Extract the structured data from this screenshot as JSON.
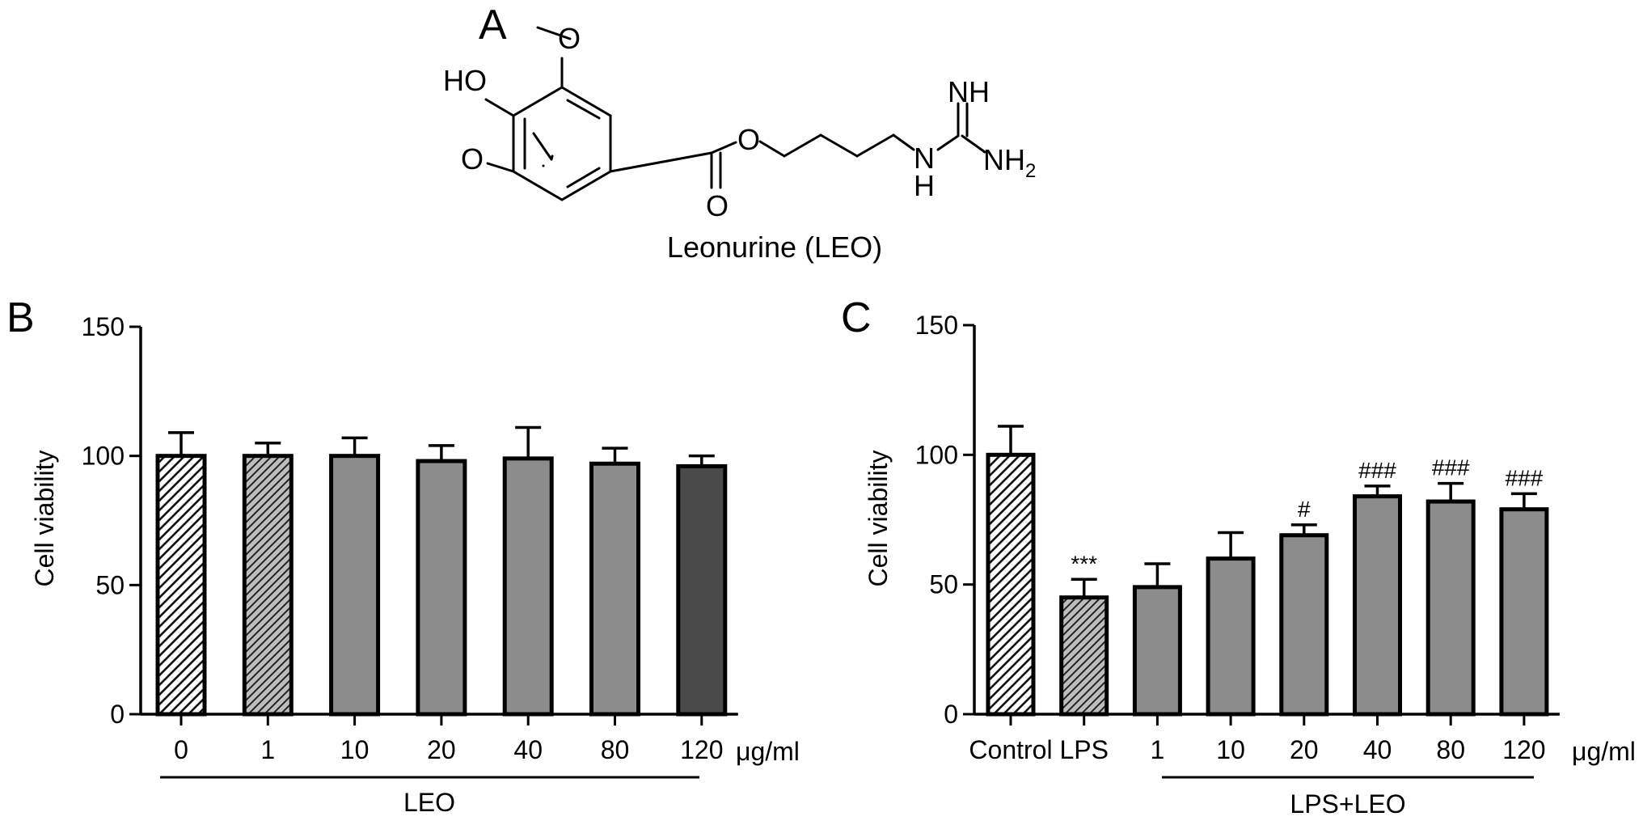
{
  "panel_a": {
    "letter": "A",
    "compound_name": "Leonurine (LEO)",
    "atom_labels": {
      "hydroxyl": "HO",
      "methoxy_top_o": "O",
      "methoxy_bottom_o": "O",
      "ester_o": "O",
      "carbonyl_o": "O",
      "imine": "NH",
      "amine_n": "N",
      "amine_h": "H",
      "amino_main": "NH",
      "amino_sub": "2"
    }
  },
  "chart_data": [
    {
      "panel": "B",
      "type": "bar",
      "ylabel": "Cell viability",
      "ylim": [
        0,
        150
      ],
      "yticks": [
        0,
        50,
        100,
        150
      ],
      "categories": [
        "0",
        "1",
        "10",
        "20",
        "40",
        "80",
        "120"
      ],
      "unit_label": "μg/ml",
      "group_label": "LEO",
      "values": [
        100,
        100,
        100,
        98,
        99,
        97,
        96
      ],
      "errors": [
        9,
        5,
        7,
        6,
        12,
        6,
        4
      ],
      "annotations": [
        "",
        "",
        "",
        "",
        "",
        "",
        ""
      ],
      "fills": [
        "hatch-white",
        "hatch-gray",
        "#8c8c8c",
        "#8c8c8c",
        "#8c8c8c",
        "#8c8c8c",
        "#4a4a4a"
      ]
    },
    {
      "panel": "C",
      "type": "bar",
      "ylabel": "Cell viability",
      "ylim": [
        0,
        150
      ],
      "yticks": [
        0,
        50,
        100,
        150
      ],
      "categories": [
        "Control",
        "LPS",
        "1",
        "10",
        "20",
        "40",
        "80",
        "120"
      ],
      "unit_label": "μg/ml",
      "group_label": "LPS+LEO",
      "values": [
        100,
        45,
        49,
        60,
        69,
        84,
        82,
        79
      ],
      "errors": [
        11,
        7,
        9,
        10,
        4,
        4,
        7,
        6
      ],
      "annotations": [
        "",
        "***",
        "",
        "",
        "#",
        "###",
        "###",
        "###"
      ],
      "fills": [
        "hatch-white",
        "hatch-gray",
        "#8c8c8c",
        "#8c8c8c",
        "#8c8c8c",
        "#8c8c8c",
        "#8c8c8c",
        "#8c8c8c"
      ]
    }
  ]
}
